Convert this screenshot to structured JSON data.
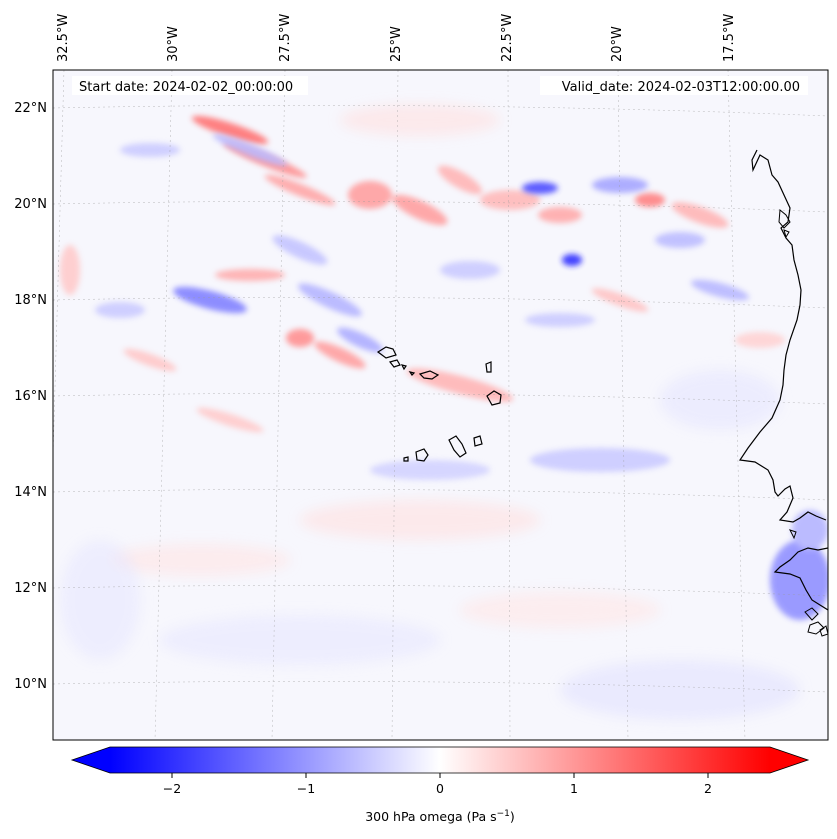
{
  "map": {
    "start_date": "Start date: 2024-02-02_00:00:00",
    "valid_date": "Valid_date: 2024-02-03T12:00:00.00",
    "lon_labels": [
      "32.5°W",
      "30°W",
      "27.5°W",
      "25°W",
      "22.5°W",
      "20°W",
      "17.5°W"
    ],
    "lat_labels": [
      "22°N",
      "20°N",
      "18°N",
      "16°N",
      "14°N",
      "12°N",
      "10°N"
    ],
    "colorbar": {
      "label": "300 hPa omega (Pa s",
      "label_exp": "−1",
      "label_close": ")",
      "ticks": [
        "−2",
        "−1",
        "0",
        "1",
        "2"
      ],
      "tick_values": [
        -2,
        -1,
        0,
        1,
        2
      ],
      "range": [
        -2.6,
        2.6
      ]
    },
    "colors": {
      "negative": "#0000ff",
      "zero": "#ffffff",
      "positive": "#ff0000",
      "coast": "#000000"
    }
  }
}
